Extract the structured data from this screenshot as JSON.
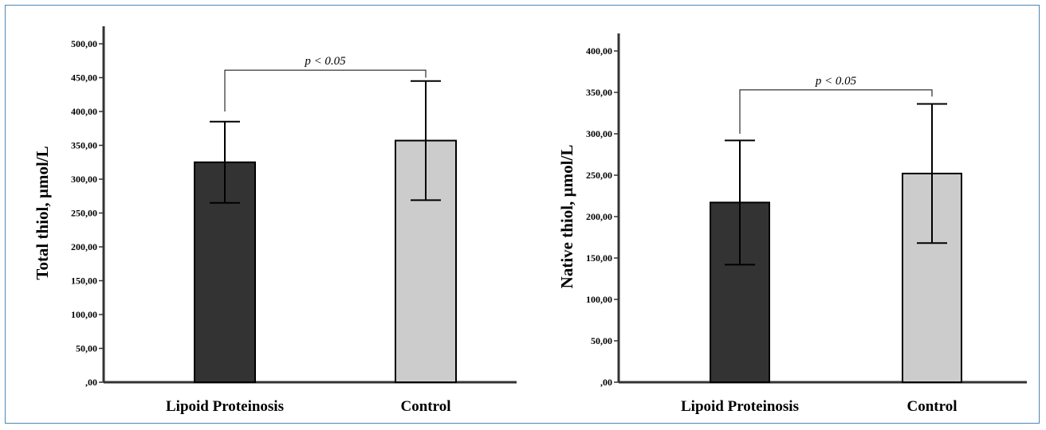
{
  "chart_data": [
    {
      "type": "bar",
      "categories": [
        "Lipoid Proteinosis",
        "Control"
      ],
      "values": [
        325,
        357
      ],
      "error_low": [
        265,
        269
      ],
      "error_high": [
        385,
        445
      ],
      "ylabel": "Total thiol, µmol/L",
      "xlabel": "",
      "ylim": [
        0,
        500
      ],
      "y_ticks": [
        ",00",
        "50,00",
        "100,00",
        "150,00",
        "200,00",
        "250,00",
        "300,00",
        "350,00",
        "400,00",
        "450,00",
        "500,00"
      ],
      "bar_colors": [
        "#333333",
        "#cccccc"
      ],
      "grid": false,
      "annotation": {
        "text": "p < 0.05",
        "bracket_level": 461,
        "left_drop": 400,
        "right_drop": 450
      }
    },
    {
      "type": "bar",
      "categories": [
        "Lipoid Proteinosis",
        "Control"
      ],
      "values": [
        217,
        252
      ],
      "error_low": [
        142,
        168
      ],
      "error_high": [
        292,
        336
      ],
      "ylabel": "Native thiol, µmol/L",
      "xlabel": "",
      "ylim": [
        0,
        400
      ],
      "y_ticks": [
        ",00",
        "50,00",
        "100,00",
        "150,00",
        "200,00",
        "250,00",
        "300,00",
        "350,00",
        "400,00"
      ],
      "bar_colors": [
        "#333333",
        "#cccccc"
      ],
      "grid": false,
      "annotation": {
        "text": "p < 0.05",
        "bracket_level": 353,
        "left_drop": 300,
        "right_drop": 345
      }
    }
  ]
}
